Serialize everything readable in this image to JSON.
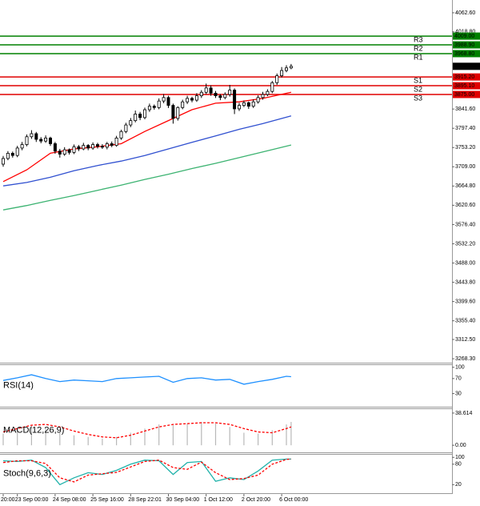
{
  "chart_data": [
    {
      "type": "candlestick",
      "categories": [
        "20:00",
        null,
        null,
        "23 Sep 00:00",
        null,
        null,
        null,
        null,
        null,
        null,
        null,
        "24 Sep 08:00",
        null,
        null,
        null,
        null,
        null,
        null,
        null,
        "25 Sep 16:00",
        null,
        null,
        null,
        null,
        null,
        null,
        null,
        "28 Sep 22:01",
        null,
        null,
        null,
        null,
        null,
        null,
        null,
        "30 Sep 04:00",
        null,
        null,
        null,
        null,
        null,
        null,
        null,
        "1 Oct 12:00",
        null,
        null,
        null,
        null,
        null,
        null,
        null,
        "2 Oct 20:00",
        null,
        null,
        null,
        null,
        null,
        null,
        null,
        "6 Oct 00:00",
        null,
        null
      ],
      "open": [
        3715,
        3728,
        3740,
        3735,
        3752,
        3760,
        3778,
        3785,
        3772,
        3768,
        3775,
        3762,
        3745,
        3738,
        3748,
        3742,
        3755,
        3750,
        3758,
        3752,
        3760,
        3756,
        3754,
        3762,
        3758,
        3775,
        3790,
        3805,
        3815,
        3830,
        3822,
        3840,
        3848,
        3845,
        3860,
        3868,
        3850,
        3820,
        3845,
        3858,
        3866,
        3862,
        3872,
        3880,
        3890,
        3878,
        3872,
        3868,
        3875,
        3885,
        3842,
        3850,
        3856,
        3848,
        3858,
        3868,
        3875,
        3882,
        3902,
        3918,
        3930,
        3936
      ],
      "high": [
        3734,
        3745,
        3744,
        3757,
        3766,
        3783,
        3793,
        3789,
        3777,
        3781,
        3778,
        3766,
        3750,
        3754,
        3751,
        3760,
        3759,
        3764,
        3761,
        3765,
        3764,
        3761,
        3766,
        3767,
        3780,
        3794,
        3810,
        3821,
        3838,
        3835,
        3845,
        3854,
        3852,
        3866,
        3876,
        3872,
        3854,
        3848,
        3863,
        3872,
        3870,
        3878,
        3885,
        3900,
        3896,
        3883,
        3876,
        3880,
        3897,
        3889,
        3856,
        3861,
        3859,
        3864,
        3873,
        3881,
        3887,
        3906,
        3923,
        3938,
        3942,
        3945
      ],
      "low": [
        3709,
        3724,
        3730,
        3731,
        3747,
        3756,
        3773,
        3766,
        3763,
        3764,
        3757,
        3739,
        3730,
        3734,
        3737,
        3738,
        3745,
        3747,
        3747,
        3748,
        3751,
        3750,
        3749,
        3754,
        3755,
        3771,
        3786,
        3800,
        3811,
        3816,
        3818,
        3835,
        3840,
        3841,
        3855,
        3844,
        3808,
        3815,
        3841,
        3853,
        3857,
        3858,
        3867,
        3876,
        3872,
        3867,
        3862,
        3864,
        3870,
        3830,
        3837,
        3846,
        3842,
        3844,
        3854,
        3863,
        3871,
        3878,
        3897,
        3914,
        3926,
        3933
      ],
      "close": [
        3728,
        3740,
        3735,
        3752,
        3760,
        3778,
        3785,
        3772,
        3768,
        3775,
        3762,
        3745,
        3738,
        3748,
        3742,
        3755,
        3750,
        3758,
        3752,
        3760,
        3756,
        3754,
        3762,
        3758,
        3775,
        3790,
        3805,
        3815,
        3830,
        3822,
        3840,
        3848,
        3845,
        3860,
        3868,
        3850,
        3820,
        3845,
        3858,
        3866,
        3862,
        3872,
        3880,
        3890,
        3878,
        3872,
        3868,
        3875,
        3885,
        3842,
        3850,
        3856,
        3848,
        3858,
        3868,
        3875,
        3882,
        3902,
        3918,
        3930,
        3936,
        3939.65
      ],
      "series": [
        {
          "color": "#ff0000",
          "x": [
            0,
            5,
            10,
            15,
            20,
            25,
            30,
            35,
            40,
            45,
            50,
            55,
            61
          ],
          "values": [
            3675,
            3702,
            3740,
            3750,
            3755,
            3762,
            3790,
            3815,
            3840,
            3855,
            3858,
            3866,
            3880
          ]
        },
        {
          "color": "#3050d0",
          "x": [
            0,
            5,
            10,
            15,
            20,
            25,
            30,
            35,
            40,
            45,
            50,
            55,
            61
          ],
          "values": [
            3665,
            3673,
            3685,
            3700,
            3712,
            3722,
            3735,
            3750,
            3765,
            3780,
            3795,
            3808,
            3826
          ]
        },
        {
          "color": "#3cb371",
          "x": [
            0,
            5,
            10,
            15,
            20,
            25,
            30,
            35,
            40,
            45,
            50,
            55,
            61
          ],
          "values": [
            3610,
            3620,
            3632,
            3643,
            3655,
            3667,
            3680,
            3692,
            3705,
            3717,
            3730,
            3743,
            3759
          ]
        }
      ],
      "levels": [
        {
          "name": "R3",
          "value": 4009,
          "value_label": "4009.00",
          "color": "#008000"
        },
        {
          "name": "R2",
          "value": 3988.9,
          "value_label": "3988.90",
          "color": "#008000"
        },
        {
          "name": "R1",
          "value": 3968.8,
          "value_label": "3968.80",
          "color": "#008000"
        },
        {
          "name": "S1",
          "value": 3915.2,
          "value_label": "3915.20",
          "color": "#e00000"
        },
        {
          "name": "S2",
          "value": 3895.1,
          "value_label": "3895.10",
          "color": "#e00000"
        },
        {
          "name": "S3",
          "value": 3875,
          "value_label": "3875.00",
          "color": "#e00000"
        }
      ],
      "ylim": [
        3259.2,
        4091.9
      ],
      "yticks": [
        {
          "value": 4062.6,
          "label": "4062.60"
        },
        {
          "value": 4018.8,
          "label": "4018.80"
        },
        {
          "value": 3841.6,
          "label": "3841.60"
        },
        {
          "value": 3797.4,
          "label": "3797.40"
        },
        {
          "value": 3753.2,
          "label": "3753.20"
        },
        {
          "value": 3709,
          "label": "3709.00"
        },
        {
          "value": 3664.8,
          "label": "3664.80"
        },
        {
          "value": 3620.6,
          "label": "3620.60"
        },
        {
          "value": 3576.4,
          "label": "3576.40"
        },
        {
          "value": 3532.2,
          "label": "3532.20"
        },
        {
          "value": 3488,
          "label": "3488.00"
        },
        {
          "value": 3443.8,
          "label": "3443.80"
        },
        {
          "value": 3399.6,
          "label": "3399.60"
        },
        {
          "value": 3355.4,
          "label": "3355.40"
        },
        {
          "value": 3312.5,
          "label": "3312.50"
        },
        {
          "value": 3268.3,
          "label": "3268.30"
        }
      ]
    },
    {
      "type": "line",
      "title": "RSI(14)",
      "series": [
        {
          "color": "#1e90ff",
          "x": [
            0,
            3,
            6,
            9,
            12,
            15,
            18,
            21,
            24,
            27,
            30,
            33,
            36,
            39,
            42,
            45,
            48,
            51,
            54,
            57,
            60,
            61
          ],
          "values": [
            65,
            72,
            80,
            70,
            62,
            66,
            64,
            62,
            70,
            72,
            74,
            76,
            60,
            70,
            72,
            66,
            68,
            55,
            62,
            68,
            76,
            75
          ]
        }
      ],
      "ylim": [
        -5,
        108
      ],
      "yticks": [
        100,
        70,
        30
      ]
    },
    {
      "type": "combo",
      "title": "MACD(12,26,9)",
      "series": [
        {
          "kind": "bar",
          "color": "#b8b8b8",
          "x": [
            0,
            3,
            6,
            9,
            12,
            15,
            18,
            21,
            24,
            27,
            30,
            33,
            36,
            39,
            42,
            45,
            48,
            51,
            54,
            57,
            60,
            61
          ],
          "values": [
            14,
            18,
            22,
            20,
            15,
            12,
            10,
            8,
            10,
            15,
            20,
            25,
            24,
            26,
            28,
            26,
            22,
            15,
            14,
            18,
            25,
            28
          ]
        },
        {
          "kind": "line",
          "dash": true,
          "color": "#ff0000",
          "x": [
            0,
            3,
            6,
            9,
            12,
            15,
            18,
            21,
            24,
            27,
            30,
            33,
            36,
            39,
            42,
            45,
            48,
            51,
            54,
            57,
            60,
            61
          ],
          "values": [
            16,
            20,
            24,
            25,
            22,
            17,
            13,
            10,
            9,
            12,
            17,
            22,
            25,
            26,
            27,
            27,
            25,
            20,
            16,
            15,
            20,
            22
          ]
        }
      ],
      "ylim": [
        -8.5,
        44.3
      ],
      "yticks": [
        38.614,
        {
          "value": 0,
          "label": "0.00"
        }
      ]
    },
    {
      "type": "line",
      "title": "Stoch(9,6,3)",
      "series": [
        {
          "color": "#20b2aa",
          "x": [
            0,
            3,
            6,
            9,
            12,
            15,
            18,
            21,
            24,
            27,
            30,
            33,
            36,
            39,
            42,
            45,
            48,
            51,
            54,
            57,
            60,
            61
          ],
          "values": [
            90,
            88,
            92,
            70,
            20,
            40,
            55,
            50,
            62,
            80,
            92,
            90,
            50,
            85,
            88,
            30,
            40,
            35,
            60,
            92,
            95,
            95
          ]
        },
        {
          "dash": true,
          "color": "#ff0000",
          "x": [
            0,
            3,
            6,
            9,
            12,
            15,
            18,
            21,
            24,
            27,
            30,
            33,
            36,
            39,
            42,
            45,
            48,
            51,
            54,
            57,
            60,
            61
          ],
          "values": [
            85,
            90,
            90,
            82,
            40,
            28,
            48,
            52,
            56,
            72,
            88,
            92,
            70,
            65,
            86,
            55,
            35,
            38,
            48,
            80,
            94,
            95
          ]
        }
      ],
      "ylim": [
        -5,
        110
      ],
      "yticks": [
        100,
        80,
        20
      ]
    }
  ]
}
